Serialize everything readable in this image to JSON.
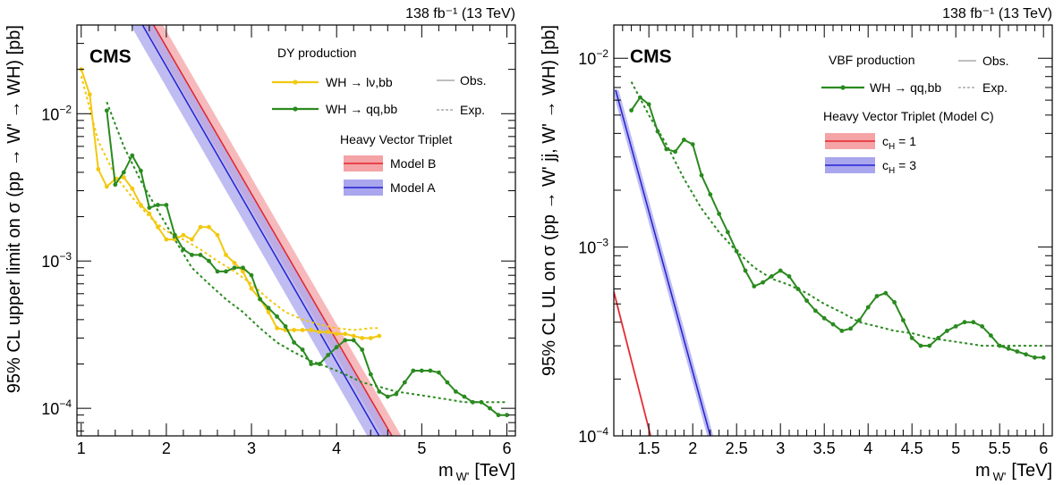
{
  "chart_data": [
    {
      "type": "line",
      "lumi": "138 fb⁻¹ (13 TeV)",
      "experiment": "CMS",
      "xlabel": "m W' [TeV]",
      "xlabel_main": "m",
      "xlabel_sub": "W'",
      "xlabel_unit": "[TeV]",
      "ylabel": "95% CL upper limit on σ (pp → W' → WH) [pb]",
      "xlim": [
        0.95,
        6.1
      ],
      "ylim": [
        6.5e-05,
        0.04
      ],
      "ylog": true,
      "x_ticks": [
        1,
        2,
        3,
        4,
        5,
        6
      ],
      "x_tick_labels": [
        "1",
        "2",
        "3",
        "4",
        "5",
        "6"
      ],
      "y_ticks": [
        0.0001,
        0.001,
        0.01
      ],
      "y_tick_labels": [
        {
          "base": "10",
          "exp": "−4"
        },
        {
          "base": "10",
          "exp": "−3"
        },
        {
          "base": "10",
          "exp": "−2"
        }
      ],
      "legend": {
        "header": "DY production",
        "obs_label": "Obs.",
        "exp_label": "Exp.",
        "model_header": "Heavy Vector Triplet"
      },
      "series": [
        {
          "name": "WH → lν,bb",
          "style": "observed",
          "color": "#f2c80f",
          "x": [
            1.0,
            1.1,
            1.2,
            1.3,
            1.4,
            1.5,
            1.6,
            1.7,
            1.8,
            1.9,
            2.0,
            2.1,
            2.2,
            2.3,
            2.4,
            2.5,
            2.6,
            2.7,
            2.8,
            2.9,
            3.0,
            3.1,
            3.2,
            3.3,
            3.4,
            3.5,
            3.6,
            3.7,
            3.8,
            3.9,
            4.0,
            4.1,
            4.2,
            4.3,
            4.4,
            4.5
          ],
          "y": [
            0.02,
            0.0135,
            0.0042,
            0.0032,
            0.0036,
            0.0037,
            0.0031,
            0.0024,
            0.0021,
            0.0017,
            0.0014,
            0.0014,
            0.0015,
            0.0014,
            0.0017,
            0.0017,
            0.0015,
            0.0011,
            0.00097,
            0.00085,
            0.00065,
            0.00055,
            0.00045,
            0.00035,
            0.00034,
            0.00034,
            0.00034,
            0.00034,
            0.00033,
            0.00033,
            0.00032,
            0.00032,
            0.00031,
            0.0003,
            0.0003,
            0.00031
          ]
        },
        {
          "name": "WH → lν,bb",
          "style": "expected",
          "color": "#f2c80f",
          "x": [
            1.0,
            1.2,
            1.4,
            1.6,
            1.8,
            2.0,
            2.2,
            2.4,
            2.6,
            2.8,
            3.0,
            3.2,
            3.4,
            3.6,
            3.8,
            4.0,
            4.2,
            4.4,
            4.5
          ],
          "y": [
            0.018,
            0.0065,
            0.0038,
            0.0027,
            0.002,
            0.0016,
            0.0014,
            0.0012,
            0.001,
            0.00085,
            0.0007,
            0.00055,
            0.00045,
            0.0004,
            0.00037,
            0.00035,
            0.00034,
            0.00035,
            0.00035
          ]
        },
        {
          "name": "WH → qq,bb",
          "style": "observed",
          "color": "#2a8a1f",
          "x": [
            1.3,
            1.4,
            1.5,
            1.6,
            1.7,
            1.8,
            1.9,
            2.0,
            2.1,
            2.2,
            2.3,
            2.4,
            2.5,
            2.6,
            2.7,
            2.8,
            2.9,
            3.0,
            3.1,
            3.2,
            3.3,
            3.4,
            3.5,
            3.6,
            3.7,
            3.8,
            3.9,
            4.0,
            4.1,
            4.2,
            4.3,
            4.4,
            4.5,
            4.6,
            4.7,
            4.8,
            4.9,
            5.0,
            5.1,
            5.2,
            5.3,
            5.4,
            5.5,
            5.6,
            5.7,
            5.8,
            5.9,
            6.0
          ],
          "y": [
            0.0105,
            0.0033,
            0.004,
            0.0052,
            0.0041,
            0.0023,
            0.0024,
            0.0024,
            0.0015,
            0.0012,
            0.0011,
            0.0011,
            0.001,
            0.00085,
            0.00085,
            0.0009,
            0.0009,
            0.0008,
            0.00055,
            0.00048,
            0.00042,
            0.00036,
            0.00028,
            0.00025,
            0.0002,
            0.0002,
            0.00023,
            0.00026,
            0.00029,
            0.00029,
            0.00025,
            0.00017,
            0.00013,
            0.00012,
            0.000125,
            0.00015,
            0.00018,
            0.00018,
            0.00018,
            0.000175,
            0.00015,
            0.00013,
            0.00012,
            0.00011,
            0.00011,
            0.0001,
            9e-05,
            9e-05
          ]
        },
        {
          "name": "WH → qq,bb",
          "style": "expected",
          "color": "#2a8a1f",
          "x": [
            1.3,
            1.5,
            1.7,
            1.9,
            2.1,
            2.3,
            2.5,
            2.7,
            2.9,
            3.1,
            3.3,
            3.5,
            3.7,
            3.9,
            4.1,
            4.3,
            4.5,
            4.7,
            4.9,
            5.1,
            5.3,
            5.5,
            5.7,
            6.0
          ],
          "y": [
            0.012,
            0.006,
            0.0035,
            0.0022,
            0.0014,
            0.0009,
            0.0007,
            0.00055,
            0.00045,
            0.00035,
            0.00028,
            0.00024,
            0.00021,
            0.00019,
            0.00017,
            0.00015,
            0.00014,
            0.00013,
            0.000125,
            0.00012,
            0.000115,
            0.00011,
            0.00011,
            0.00011
          ]
        }
      ],
      "models": [
        {
          "name": "Model B",
          "color": "#e3242b",
          "band": "#f4a3a6",
          "x": [
            1.85,
            4.65
          ],
          "y": [
            0.04,
            6.5e-05
          ],
          "halfwidth": 0.11
        },
        {
          "name": "Model A",
          "color": "#2323d0",
          "band": "#a9a6ee",
          "x": [
            1.72,
            4.5
          ],
          "y": [
            0.04,
            6.5e-05
          ],
          "halfwidth": 0.14
        }
      ]
    },
    {
      "type": "line",
      "lumi": "138 fb⁻¹ (13 TeV)",
      "experiment": "CMS",
      "xlabel": "m W' [TeV]",
      "xlabel_main": "m",
      "xlabel_sub": "W'",
      "xlabel_unit": "[TeV]",
      "ylabel": "95% CL UL on σ (pp → W' jj, W' → WH) [pb]",
      "xlim": [
        1.1,
        6.1
      ],
      "ylim": [
        0.0001,
        0.015
      ],
      "ylog": true,
      "x_ticks": [
        1.5,
        2,
        2.5,
        3,
        3.5,
        4,
        4.5,
        5,
        5.5,
        6
      ],
      "x_tick_labels": [
        "1.5",
        "2",
        "2.5",
        "3",
        "3.5",
        "4",
        "4.5",
        "5",
        "5.5",
        "6"
      ],
      "y_ticks": [
        0.0001,
        0.001,
        0.01
      ],
      "y_tick_labels": [
        {
          "base": "10",
          "exp": "−4"
        },
        {
          "base": "10",
          "exp": "−3"
        },
        {
          "base": "10",
          "exp": "−2"
        }
      ],
      "legend": {
        "header": "VBF production",
        "obs_label": "Obs.",
        "exp_label": "Exp.",
        "model_header": "Heavy Vector Triplet (Model C)"
      },
      "series": [
        {
          "name": "WH → qq,bb",
          "style": "observed",
          "color": "#2a8a1f",
          "x": [
            1.3,
            1.4,
            1.5,
            1.6,
            1.7,
            1.8,
            1.9,
            2.0,
            2.1,
            2.2,
            2.3,
            2.4,
            2.5,
            2.6,
            2.7,
            2.8,
            2.9,
            3.0,
            3.1,
            3.2,
            3.3,
            3.4,
            3.5,
            3.6,
            3.7,
            3.8,
            3.9,
            4.0,
            4.1,
            4.2,
            4.3,
            4.4,
            4.5,
            4.6,
            4.7,
            4.8,
            4.9,
            5.0,
            5.1,
            5.2,
            5.3,
            5.4,
            5.5,
            5.6,
            5.7,
            5.8,
            5.9,
            6.0
          ],
          "y": [
            0.0053,
            0.0062,
            0.0057,
            0.0041,
            0.0033,
            0.0032,
            0.0037,
            0.0035,
            0.0024,
            0.0019,
            0.0015,
            0.0012,
            0.00095,
            0.00075,
            0.00062,
            0.00065,
            0.0007,
            0.00075,
            0.0007,
            0.0006,
            0.00052,
            0.00046,
            0.00042,
            0.00039,
            0.00036,
            0.00037,
            0.00041,
            0.00048,
            0.00055,
            0.00057,
            0.00051,
            0.00041,
            0.00033,
            0.0003,
            0.0003,
            0.00033,
            0.00036,
            0.00038,
            0.0004,
            0.0004,
            0.00038,
            0.00034,
            0.0003,
            0.00029,
            0.00028,
            0.00027,
            0.00026,
            0.00026
          ]
        },
        {
          "name": "WH → qq,bb",
          "style": "expected",
          "color": "#2a8a1f",
          "x": [
            1.3,
            1.5,
            1.7,
            1.9,
            2.1,
            2.3,
            2.5,
            2.7,
            2.9,
            3.1,
            3.3,
            3.5,
            3.7,
            3.9,
            4.1,
            4.3,
            4.5,
            4.7,
            4.9,
            5.1,
            5.3,
            5.5,
            5.7,
            6.0
          ],
          "y": [
            0.0075,
            0.005,
            0.0035,
            0.0023,
            0.0016,
            0.0012,
            0.00095,
            0.00078,
            0.00068,
            0.00063,
            0.00057,
            0.0005,
            0.00045,
            0.0004,
            0.00038,
            0.00036,
            0.00035,
            0.00033,
            0.00032,
            0.00031,
            0.0003,
            0.0003,
            0.0003,
            0.0003
          ]
        }
      ],
      "models": [
        {
          "name": "c",
          "sub": "H",
          "suffix": " = 1",
          "color": "#e3242b",
          "band": "#f4a3a6",
          "x": [
            1.1,
            1.52
          ],
          "y": [
            0.00058,
            0.0001
          ],
          "halfwidth": 0.012
        },
        {
          "name": "c",
          "sub": "H",
          "suffix": " = 3",
          "color": "#2323d0",
          "band": "#a9a6ee",
          "x": [
            1.12,
            2.2
          ],
          "y": [
            0.0068,
            0.0001
          ],
          "halfwidth": 0.035
        }
      ]
    }
  ]
}
